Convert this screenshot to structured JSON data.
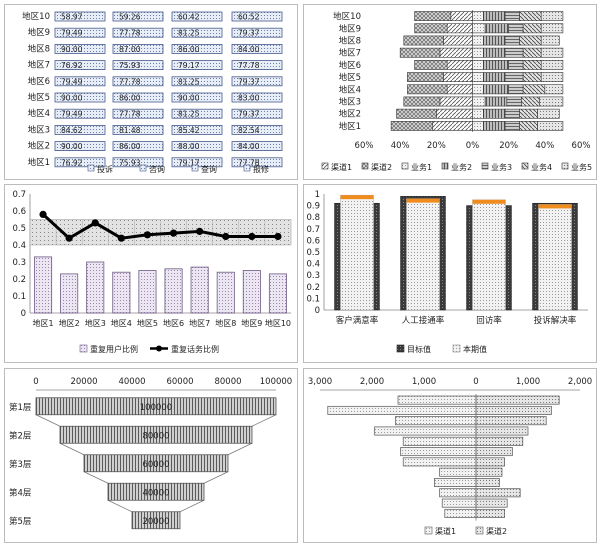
{
  "chart_data": [
    {
      "type": "bar",
      "title": "",
      "orientation": "horizontal-grouped",
      "categories": [
        "地区1",
        "地区2",
        "地区3",
        "地区4",
        "地区5",
        "地区6",
        "地区7",
        "地区8",
        "地区9",
        "地区10"
      ],
      "series": [
        {
          "name": "投诉",
          "values": [
            76.92,
            90.0,
            84.62,
            79.49,
            90.0,
            79.49,
            76.92,
            90.0,
            79.49,
            58.97
          ]
        },
        {
          "name": "咨询",
          "values": [
            75.93,
            86.0,
            81.48,
            77.78,
            86.0,
            77.78,
            75.93,
            87.0,
            77.78,
            59.26
          ]
        },
        {
          "name": "查询",
          "values": [
            79.17,
            88.0,
            85.42,
            81.25,
            90.0,
            81.25,
            79.17,
            86.0,
            81.25,
            60.42
          ]
        },
        {
          "name": "报修",
          "values": [
            77.78,
            84.0,
            82.54,
            79.37,
            83.0,
            79.37,
            77.78,
            84.0,
            79.37,
            60.52
          ]
        }
      ],
      "labels": {
        "投诉": [
          "76.92",
          "90.00",
          "84.62",
          "79.49",
          "90.00",
          "79.49",
          "76.92",
          "90.00",
          "79.49",
          "58.97"
        ],
        "咨询": [
          "75.93",
          "86.00",
          "81.48",
          "77.78",
          "86.00",
          "77.78",
          "75.93",
          "87.00",
          "77.78",
          "59.26"
        ],
        "查询": [
          "79.17",
          "88.00",
          "85.42",
          "81.25",
          "90.00",
          "81.25",
          "79.17",
          "86.00",
          "81.25",
          "60.42"
        ],
        "报修": [
          "77.78",
          "84.00",
          "82.54",
          "79.37",
          "83.00",
          "79.37",
          "77.78",
          "84.00",
          "79.37",
          "60.52"
        ]
      }
    },
    {
      "type": "bar",
      "orientation": "horizontal-stacked-diverging",
      "categories": [
        "地区1",
        "地区2",
        "地区3",
        "地区4",
        "地区5",
        "地区6",
        "地区7",
        "地区8",
        "地区9",
        "地区10"
      ],
      "xticks": [
        "60%",
        "40%",
        "20%",
        "0%",
        "20%",
        "40%",
        "60%"
      ],
      "xlim": [
        -0.6,
        0.6
      ],
      "series": [
        {
          "name": "渠道1",
          "side": "left",
          "values": [
            0.22,
            0.2,
            0.18,
            0.14,
            0.16,
            0.14,
            0.18,
            0.16,
            0.14,
            0.12
          ]
        },
        {
          "name": "渠道2",
          "side": "left",
          "values": [
            0.23,
            0.22,
            0.2,
            0.22,
            0.2,
            0.18,
            0.22,
            0.22,
            0.18,
            0.2
          ]
        },
        {
          "name": "业务1",
          "side": "right",
          "values": [
            0.06,
            0.06,
            0.07,
            0.06,
            0.06,
            0.06,
            0.06,
            0.06,
            0.07,
            0.06
          ]
        },
        {
          "name": "业务2",
          "side": "right",
          "values": [
            0.12,
            0.12,
            0.12,
            0.14,
            0.12,
            0.14,
            0.12,
            0.12,
            0.13,
            0.12
          ]
        },
        {
          "name": "业务3",
          "side": "right",
          "values": [
            0.08,
            0.08,
            0.08,
            0.08,
            0.1,
            0.08,
            0.1,
            0.08,
            0.08,
            0.08
          ]
        },
        {
          "name": "业务4",
          "side": "right",
          "values": [
            0.1,
            0.1,
            0.1,
            0.12,
            0.1,
            0.1,
            0.1,
            0.12,
            0.1,
            0.12
          ]
        },
        {
          "name": "业务5",
          "side": "right",
          "values": [
            0.14,
            0.12,
            0.13,
            0.1,
            0.12,
            0.12,
            0.12,
            0.1,
            0.12,
            0.12
          ]
        }
      ]
    },
    {
      "type": "bar",
      "subtype": "bar+line",
      "categories": [
        "地区1",
        "地区2",
        "地区3",
        "地区4",
        "地区5",
        "地区6",
        "地区7",
        "地区8",
        "地区9",
        "地区10"
      ],
      "ylim": [
        0,
        0.7
      ],
      "yticks": [
        "0",
        "0.1",
        "0.2",
        "0.3",
        "0.4",
        "0.5",
        "0.6",
        "0.7"
      ],
      "band": [
        0.4,
        0.55
      ],
      "series": [
        {
          "name": "重复用户比例",
          "kind": "bar",
          "values": [
            0.33,
            0.23,
            0.3,
            0.24,
            0.25,
            0.26,
            0.27,
            0.24,
            0.25,
            0.23
          ]
        },
        {
          "name": "重复话务比例",
          "kind": "line",
          "values": [
            0.58,
            0.44,
            0.53,
            0.44,
            0.46,
            0.47,
            0.48,
            0.45,
            0.45,
            0.45
          ]
        }
      ]
    },
    {
      "type": "bar",
      "subtype": "overlap-target",
      "categories": [
        "客户满意率",
        "人工接通率",
        "回访率",
        "投诉解决率"
      ],
      "ylim": [
        0,
        1
      ],
      "yticks": [
        "0",
        "0.1",
        "0.2",
        "0.3",
        "0.4",
        "0.5",
        "0.6",
        "0.7",
        "0.8",
        "0.9",
        "1"
      ],
      "series": [
        {
          "name": "目标值",
          "values": [
            0.92,
            0.98,
            0.9,
            0.92
          ]
        },
        {
          "name": "本期值",
          "values": [
            0.99,
            0.96,
            0.95,
            0.91
          ]
        }
      ],
      "accent": "#f08c1e"
    },
    {
      "type": "bar",
      "subtype": "funnel",
      "xticks": [
        "0",
        "20000",
        "40000",
        "60000",
        "80000",
        "100000"
      ],
      "xlim": [
        0,
        100000
      ],
      "categories": [
        "第1层",
        "第2层",
        "第3层",
        "第4层",
        "第5层"
      ],
      "values": [
        100000,
        80000,
        60000,
        40000,
        20000
      ],
      "labels": [
        "100000",
        "80000",
        "60000",
        "40000",
        "20000"
      ]
    },
    {
      "type": "bar",
      "orientation": "horizontal-butterfly",
      "xticks": [
        "3,000",
        "2,000",
        "1,000",
        "0",
        "1,000",
        "2,000"
      ],
      "xlim": [
        -3000,
        2000
      ],
      "series": [
        {
          "name": "渠道1",
          "values": [
            -1500,
            -2850,
            -1550,
            -1950,
            -1400,
            -1450,
            -1400,
            -700,
            -800,
            -700,
            -650,
            -600
          ]
        },
        {
          "name": "渠道2",
          "values": [
            1600,
            1450,
            1350,
            1000,
            900,
            700,
            550,
            500,
            450,
            850,
            600,
            550
          ]
        }
      ]
    }
  ]
}
